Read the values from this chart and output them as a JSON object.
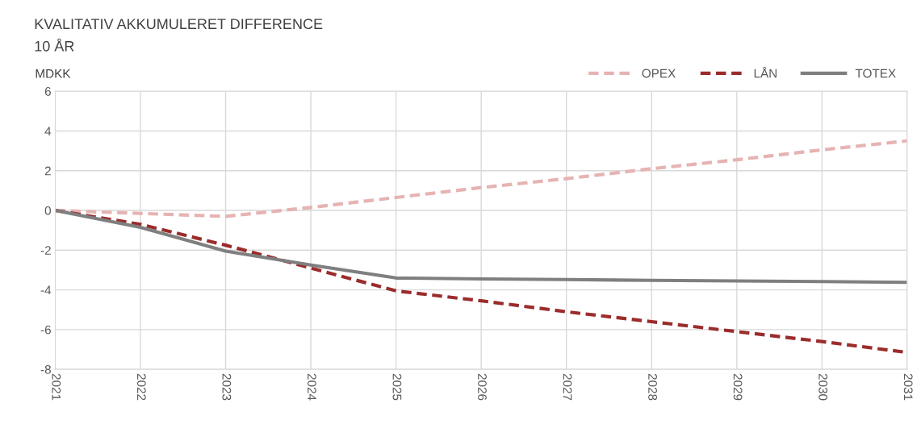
{
  "chart_data": {
    "type": "line",
    "title": "KVALITATIV AKKUMULERET DIFFERENCE",
    "subtitle": "10 ÅR",
    "ylabel": "MDKK",
    "categories": [
      "2021",
      "2022",
      "2023",
      "2024",
      "2025",
      "2026",
      "2027",
      "2028",
      "2029",
      "2030",
      "2031"
    ],
    "series": [
      {
        "name": "OPEX",
        "color": "#e6b3b3",
        "line_style": "dashed",
        "values": [
          0,
          -0.15,
          -0.3,
          0.15,
          0.65,
          1.15,
          1.6,
          2.1,
          2.55,
          3.05,
          3.5
        ]
      },
      {
        "name": "LÅN",
        "color": "#9b2c2c",
        "line_style": "dashed",
        "values": [
          0,
          -0.7,
          -1.75,
          -2.9,
          -4.05,
          -4.55,
          -5.1,
          -5.6,
          -6.1,
          -6.6,
          -7.15
        ]
      },
      {
        "name": "TOTEX",
        "color": "#7f7f7f",
        "line_style": "solid",
        "values": [
          0,
          -0.85,
          -2.05,
          -2.75,
          -3.4,
          -3.45,
          -3.48,
          -3.52,
          -3.55,
          -3.58,
          -3.62
        ]
      }
    ],
    "ylim": [
      -8,
      6
    ],
    "yticks": [
      -8,
      -6,
      -4,
      -2,
      0,
      2,
      4,
      6
    ],
    "grid": true,
    "legend": "top right"
  }
}
